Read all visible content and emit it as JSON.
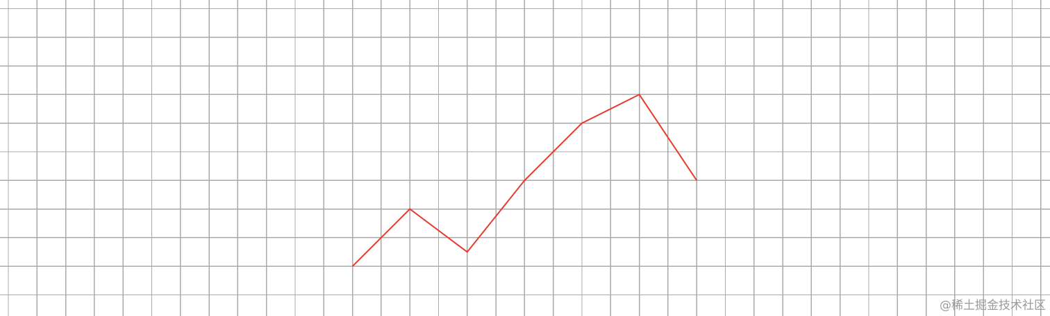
{
  "chart_data": {
    "type": "line",
    "grid": true,
    "grid_color": "#a9a9a9",
    "series": [
      {
        "color": "#e53b2c",
        "points": [
          {
            "x": 12,
            "y": 1
          },
          {
            "x": 14,
            "y": 3
          },
          {
            "x": 16,
            "y": 1.5
          },
          {
            "x": 18,
            "y": 4
          },
          {
            "x": 20,
            "y": 6
          },
          {
            "x": 22,
            "y": 7
          },
          {
            "x": 24,
            "y": 4
          }
        ]
      }
    ]
  },
  "watermark": {
    "text": "@稀土掘金技术社区"
  }
}
